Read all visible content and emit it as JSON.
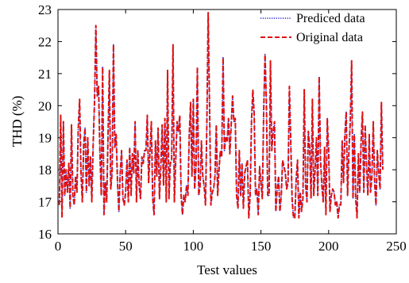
{
  "chart_data": {
    "type": "line",
    "title": "",
    "xlabel": "Test values",
    "ylabel": "THD (%)",
    "xlim": [
      0,
      250
    ],
    "ylim": [
      16,
      23
    ],
    "xticks": [
      0,
      50,
      100,
      150,
      200,
      250
    ],
    "yticks": [
      16,
      17,
      18,
      19,
      20,
      21,
      22,
      23
    ],
    "grid": false,
    "legend_position": "top-right",
    "series": [
      {
        "name": "Prediced data",
        "color": "#1f1fd6",
        "style": "dotted",
        "values": [
          16.9,
          19.7,
          16.5,
          19.5,
          17.2,
          18.0,
          17.3,
          18.2,
          16.8,
          19.4,
          17.2,
          16.9,
          17.8,
          17.3,
          19.3,
          20.2,
          17.9,
          17.0,
          18.8,
          19.3,
          17.3,
          19.0,
          17.5,
          18.4,
          17.0,
          18.8,
          20.1,
          22.5,
          20.3,
          20.6,
          18.5,
          17.2,
          21.2,
          16.6,
          17.6,
          17.0,
          19.1,
          21.1,
          17.4,
          17.9,
          21.9,
          18.7,
          19.1,
          17.6,
          16.7,
          17.9,
          18.6,
          17.1,
          16.9,
          17.3,
          18.3,
          17.0,
          18.7,
          17.2,
          18.5,
          17.9,
          19.5,
          17.0,
          18.6,
          17.5,
          17.1,
          18.4,
          18.2,
          18.6,
          18.6,
          19.7,
          17.6,
          18.6,
          19.5,
          17.1,
          16.6,
          18.9,
          17.8,
          19.3,
          17.1,
          18.1,
          19.4,
          17.5,
          19.6,
          17.0,
          21.1,
          17.1,
          18.2,
          18.3,
          21.9,
          17.0,
          18.3,
          19.5,
          19.2,
          19.7,
          17.2,
          16.6,
          17.2,
          17.0,
          17.5,
          17.2,
          19.1,
          20.1,
          17.8,
          20.2,
          17.4,
          18.1,
          21.2,
          17.2,
          17.5,
          18.9,
          17.8,
          17.5,
          16.9,
          19.4,
          22.9,
          20.0,
          16.9,
          17.3,
          17.4,
          17.8,
          19.4,
          17.2,
          18.0,
          18.6,
          18.4,
          21.5,
          18.6,
          19.0,
          18.9,
          19.6,
          18.5,
          19.4,
          20.3,
          19.5,
          19.6,
          17.2,
          16.8,
          18.6,
          17.2,
          18.2,
          16.8,
          17.9,
          18.1,
          18.3,
          16.5,
          17.2,
          19.5,
          20.5,
          19.7,
          17.2,
          17.4,
          16.6,
          18.1,
          17.6,
          17.1,
          19.8,
          21.6,
          20.1,
          17.2,
          17.2,
          21.4,
          18.6,
          19.2,
          19.5,
          16.7,
          17.4,
          17.8,
          16.7,
          17.2,
          18.3,
          18.1,
          17.9,
          17.4,
          17.6,
          20.6,
          18.9,
          17.1,
          16.5,
          16.5,
          17.7,
          18.3,
          16.5,
          17.3,
          16.7,
          17.1,
          20.5,
          17.5,
          17.0,
          19.2,
          18.7,
          17.1,
          20.2,
          17.2,
          18.0,
          19.0,
          17.2,
          20.9,
          18.3,
          17.5,
          17.0,
          18.7,
          16.6,
          19.6,
          18.6,
          16.7,
          17.2,
          17.4,
          17.3,
          16.9,
          17.0,
          16.5,
          16.9,
          16.9,
          18.9,
          17.6,
          19.1,
          19.8,
          17.2,
          18.6,
          19.5,
          21.4,
          17.1,
          19.1,
          17.1,
          16.5,
          18.5,
          17.3,
          18.9,
          19.8,
          17.3,
          19.4,
          18.1,
          17.2,
          19.1,
          17.3,
          17.8,
          19.5,
          17.6,
          16.9,
          18.6,
          17.9,
          17.4,
          20.1,
          18.0
        ]
      },
      {
        "name": "Original data",
        "color": "#e01010",
        "style": "dashed",
        "values": [
          16.9,
          19.7,
          16.5,
          19.5,
          17.2,
          18.0,
          17.3,
          18.2,
          16.8,
          19.4,
          17.2,
          16.9,
          17.8,
          17.3,
          19.3,
          20.2,
          17.9,
          17.0,
          18.8,
          19.3,
          17.3,
          19.0,
          17.5,
          18.4,
          17.0,
          18.8,
          20.1,
          22.5,
          20.3,
          20.6,
          18.5,
          17.2,
          21.2,
          16.6,
          17.6,
          17.0,
          19.1,
          21.1,
          17.4,
          17.9,
          21.9,
          18.7,
          19.1,
          17.6,
          16.7,
          17.9,
          18.6,
          17.1,
          16.9,
          17.3,
          18.3,
          17.0,
          18.7,
          17.2,
          18.5,
          17.9,
          19.5,
          17.0,
          18.6,
          17.5,
          17.1,
          18.4,
          18.2,
          18.6,
          18.6,
          19.7,
          17.6,
          18.6,
          19.5,
          17.1,
          16.6,
          18.9,
          17.8,
          19.3,
          17.1,
          18.1,
          19.4,
          17.5,
          19.6,
          17.0,
          21.1,
          17.1,
          18.2,
          18.3,
          21.9,
          17.0,
          18.3,
          19.5,
          19.2,
          19.7,
          17.2,
          16.6,
          17.2,
          17.0,
          17.5,
          17.2,
          19.1,
          20.1,
          17.8,
          20.2,
          17.4,
          18.1,
          21.2,
          17.2,
          17.5,
          18.9,
          17.8,
          17.5,
          16.9,
          19.4,
          22.9,
          20.0,
          16.9,
          17.3,
          17.4,
          17.8,
          19.4,
          17.2,
          18.0,
          18.6,
          18.4,
          21.5,
          18.6,
          19.0,
          18.9,
          19.6,
          18.5,
          19.4,
          20.3,
          19.5,
          19.6,
          17.2,
          16.8,
          18.6,
          17.2,
          18.2,
          16.8,
          17.9,
          18.1,
          18.3,
          16.5,
          17.2,
          19.5,
          20.5,
          19.7,
          17.2,
          17.4,
          16.6,
          18.1,
          17.6,
          17.1,
          19.8,
          21.6,
          20.1,
          17.2,
          17.2,
          21.4,
          18.6,
          19.2,
          19.5,
          16.7,
          17.4,
          17.8,
          16.7,
          17.2,
          18.3,
          18.1,
          17.9,
          17.4,
          17.6,
          20.6,
          18.9,
          17.1,
          16.5,
          16.5,
          17.7,
          18.3,
          16.5,
          17.3,
          16.7,
          17.1,
          20.5,
          17.5,
          17.0,
          19.2,
          18.7,
          17.1,
          20.2,
          17.2,
          18.0,
          19.0,
          17.2,
          20.9,
          18.3,
          17.5,
          17.0,
          18.7,
          16.6,
          19.6,
          18.6,
          16.7,
          17.2,
          17.4,
          17.3,
          16.9,
          17.0,
          16.5,
          16.9,
          16.9,
          18.9,
          17.6,
          19.1,
          19.8,
          17.2,
          18.6,
          19.5,
          21.4,
          17.1,
          19.1,
          17.1,
          16.5,
          18.5,
          17.3,
          18.9,
          19.8,
          17.3,
          19.4,
          18.1,
          17.2,
          19.1,
          17.3,
          17.8,
          19.5,
          17.6,
          16.9,
          18.6,
          17.9,
          17.4,
          20.1,
          18.0
        ]
      }
    ]
  }
}
